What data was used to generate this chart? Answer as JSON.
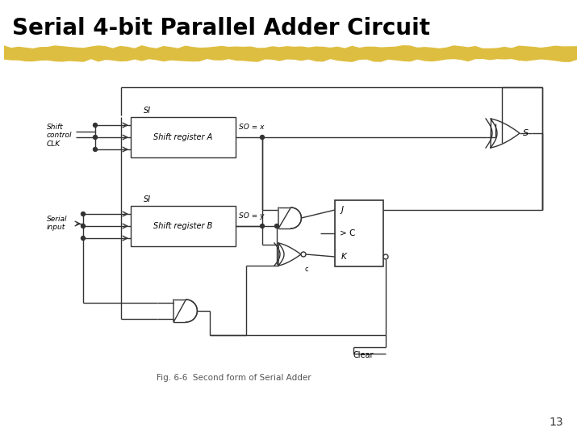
{
  "title": "Serial 4-bit Parallel Adder Circuit",
  "page_number": "13",
  "background_color": "#ffffff",
  "title_color": "#000000",
  "title_fontsize": 20,
  "highlight_color": "#D4A800",
  "highlight_alpha": 0.75,
  "caption": "Fig. 6-6  Second form of Serial Adder",
  "label_shift_control": "Shift\ncontrol\nCLK",
  "label_serial_input": "Serial\ninput",
  "label_SI_A": "SI",
  "label_SI_B": "SI",
  "label_SO_x": "SO = x",
  "label_SO_y": "SO = y",
  "label_S": "S",
  "label_J": "J",
  "label_C": "> C",
  "label_K": "K",
  "label_Clear": "Clear",
  "label_reg_A": "Shift register A",
  "label_reg_B": "Shift register B",
  "line_color": "#333333",
  "line_lw": 1.0
}
